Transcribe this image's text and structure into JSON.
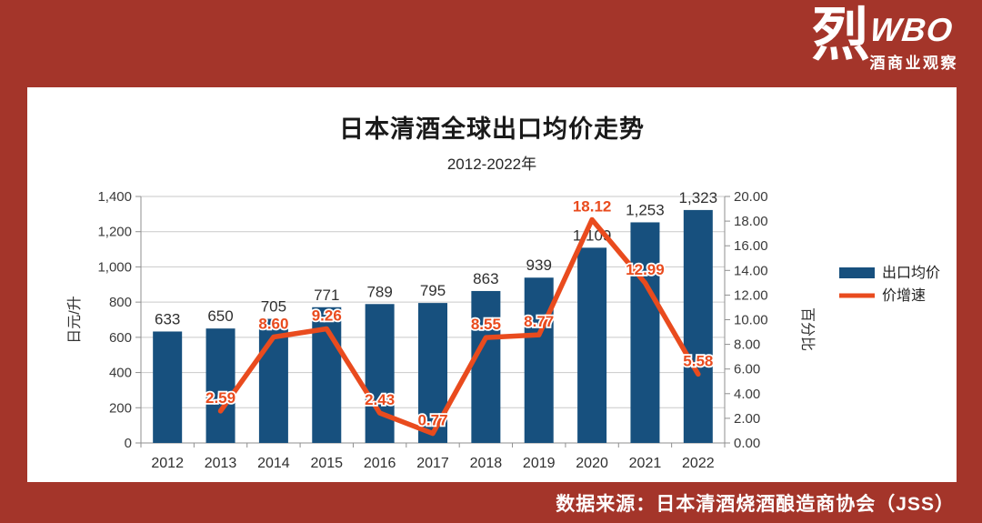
{
  "frame": {
    "source_text": "数据来源：日本清酒烧酒酿造商协会（JSS）"
  },
  "logo": {
    "char": "烈",
    "brand": "WBO",
    "tagline": "酒商业观察"
  },
  "colors": {
    "frame": "#A4352A",
    "bar": "#17507E",
    "line": "#E94B1E",
    "grid": "#C9C9C9",
    "axis": "#8F8F8F"
  },
  "chart_data": {
    "type": "bar+line",
    "title": "日本清酒全球出口均价走势",
    "subtitle": "2012-2022年",
    "categories": [
      "2012",
      "2013",
      "2014",
      "2015",
      "2016",
      "2017",
      "2018",
      "2019",
      "2020",
      "2021",
      "2022"
    ],
    "series": [
      {
        "name": "出口均价",
        "type": "bar",
        "axis": "left",
        "color": "#17507E",
        "values": [
          633,
          650,
          705,
          771,
          789,
          795,
          863,
          939,
          1109,
          1253,
          1323
        ],
        "labels": [
          "633",
          "650",
          "705",
          "771",
          "789",
          "795",
          "863",
          "939",
          "1,109",
          "1,253",
          "1,323"
        ]
      },
      {
        "name": "价增速",
        "type": "line",
        "axis": "right",
        "color": "#E94B1E",
        "values": [
          null,
          2.59,
          8.6,
          9.26,
          2.43,
          0.77,
          8.55,
          8.77,
          18.12,
          12.99,
          5.58
        ],
        "labels": [
          null,
          "2.59",
          "8.60",
          "9.26",
          "2.43",
          "0.77",
          "8.55",
          "8.77",
          "18.12",
          "12.99",
          "5.58"
        ]
      }
    ],
    "left_axis": {
      "label": "日元/升",
      "min": 0,
      "max": 1400,
      "step": 200,
      "ticks": [
        "0",
        "200",
        "400",
        "600",
        "800",
        "1,000",
        "1,200",
        "1,400"
      ]
    },
    "right_axis": {
      "label": "百分比",
      "min": 0,
      "max": 20,
      "step": 2,
      "ticks": [
        "0.00",
        "2.00",
        "4.00",
        "6.00",
        "8.00",
        "10.00",
        "12.00",
        "14.00",
        "16.00",
        "18.00",
        "20.00"
      ]
    },
    "legend": [
      "出口均价",
      "价增速"
    ],
    "legend_position": "right",
    "grid": true
  }
}
